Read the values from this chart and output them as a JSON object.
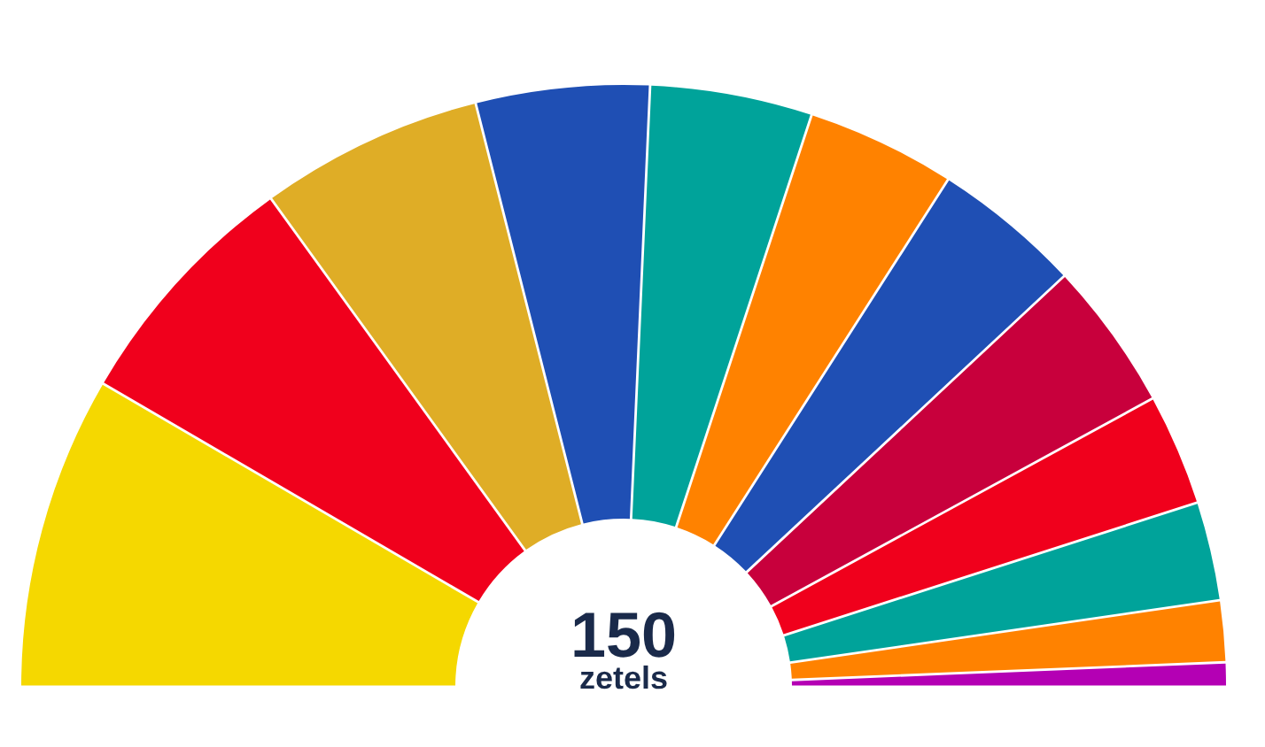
{
  "chart_data": {
    "type": "donut",
    "categories": [
      null,
      null,
      null,
      null,
      null,
      null,
      null,
      null,
      null,
      null,
      null,
      null
    ],
    "values": [
      16.8,
      13.3,
      12,
      9.3,
      8.7,
      8,
      8,
      8,
      6,
      5.3,
      3.3,
      1.3
    ],
    "colors": [
      "#f5d800",
      "#f0001c",
      "#dfad26",
      "#1f4fb4",
      "#00a39a",
      "#ff8200",
      "#1f4fb4",
      "#c8003c",
      "#f0001c",
      "#00a39a",
      "#ff8200",
      "#b400b4"
    ],
    "annotations": [
      "150",
      "zetels"
    ]
  }
}
